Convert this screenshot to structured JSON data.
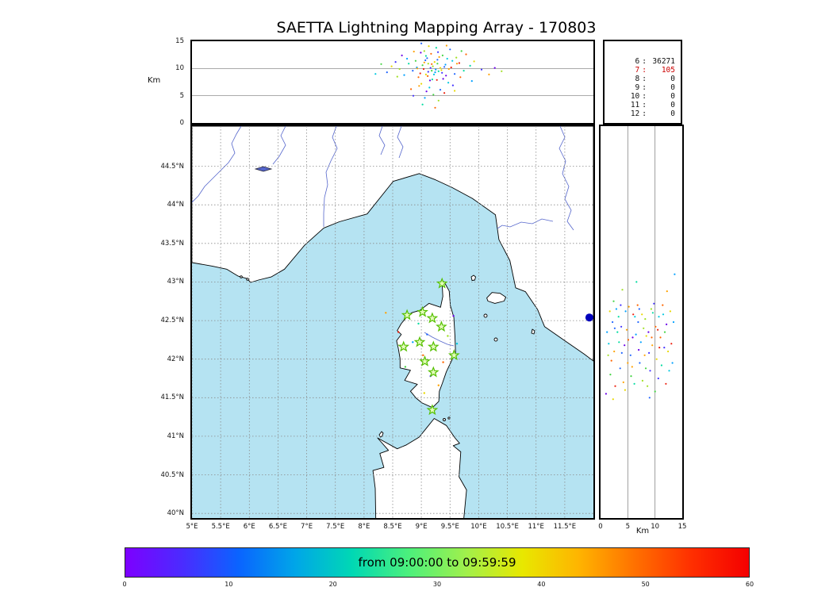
{
  "title": "SAETTA Lightning Mapping Array - 170803",
  "labels": {
    "alt_km": "Km",
    "alt_km_right": "Km"
  },
  "colors": {
    "sea": "#b5e3f2",
    "land": "#ffffff",
    "coast": "#000000",
    "river": "#5566cc",
    "grid": "#8a8a8a",
    "station": "#55c000",
    "station_fill": "#e4fbbc",
    "marker_blue": "#0000bb",
    "highlight_red": "#cc0000"
  },
  "palette": [
    "#6a00e8",
    "#4433ff",
    "#2266ff",
    "#00a0ff",
    "#00c8e0",
    "#00dca0",
    "#44d444",
    "#a0e022",
    "#e8d800",
    "#ffa200",
    "#ff6600",
    "#ee2211"
  ],
  "stats": {
    "rows": [
      {
        "station": "6",
        "count": "36271",
        "red": false
      },
      {
        "station": "7",
        "count": "105",
        "red": true
      },
      {
        "station": "8",
        "count": "0",
        "red": false
      },
      {
        "station": "9",
        "count": "0",
        "red": false
      },
      {
        "station": "10",
        "count": "0",
        "red": false
      },
      {
        "station": "11",
        "count": "0",
        "red": false
      },
      {
        "station": "12",
        "count": "0",
        "red": false
      }
    ]
  },
  "colorbar": {
    "title": "from 09:00:00 to 09:59:59",
    "ticks": [
      [
        0,
        "0"
      ],
      [
        10,
        "10"
      ],
      [
        20,
        "20"
      ],
      [
        30,
        "30"
      ],
      [
        40,
        "40"
      ],
      [
        50,
        "50"
      ],
      [
        60,
        "60"
      ]
    ],
    "range": [
      0,
      60
    ],
    "stops": [
      "#7d00ff",
      "#4b2bff",
      "#0a64ff",
      "#00a6e8",
      "#00d8b4",
      "#4cf07c",
      "#a0f04c",
      "#e8e800",
      "#ffb400",
      "#ff7000",
      "#ff2e00",
      "#f40000"
    ]
  },
  "chart_data": [
    {
      "type": "scatter",
      "name": "altitude-vs-longitude",
      "ylabel": "Km",
      "xlim": [
        5,
        12
      ],
      "ylim": [
        0,
        15
      ],
      "yticks": [
        [
          15,
          "15"
        ],
        [
          10,
          "10"
        ],
        [
          5,
          "5"
        ],
        [
          0,
          "0"
        ]
      ],
      "gridlines": [
        5,
        10
      ],
      "points": [
        [
          8.92,
          10.2,
          3
        ],
        [
          9.05,
          11.1,
          9
        ],
        [
          9.12,
          9.4,
          1
        ],
        [
          9.18,
          10.8,
          10
        ],
        [
          9.22,
          8.9,
          4
        ],
        [
          9.28,
          11.6,
          2
        ],
        [
          9.33,
          10.1,
          8
        ],
        [
          9.08,
          12.3,
          5
        ],
        [
          8.98,
          9.1,
          11
        ],
        [
          9.15,
          7.8,
          0
        ],
        [
          9.02,
          10.6,
          6
        ],
        [
          9.25,
          9.8,
          3
        ],
        [
          9.31,
          12.1,
          9
        ],
        [
          9.1,
          11.9,
          2
        ],
        [
          8.95,
          8.4,
          10
        ],
        [
          9.2,
          10.4,
          7
        ],
        [
          9.36,
          9.2,
          1
        ],
        [
          9.0,
          7.2,
          8
        ],
        [
          9.14,
          6.5,
          4
        ],
        [
          9.27,
          7.9,
          11
        ],
        [
          8.85,
          9.6,
          2
        ],
        [
          8.78,
          10.9,
          5
        ],
        [
          9.42,
          10.7,
          3
        ],
        [
          9.48,
          9.9,
          9
        ],
        [
          9.38,
          8.1,
          0
        ],
        [
          9.05,
          13.2,
          7
        ],
        [
          9.17,
          12.7,
          10
        ],
        [
          9.29,
          13.0,
          1
        ],
        [
          8.9,
          11.4,
          6
        ],
        [
          9.23,
          11.2,
          8
        ],
        [
          9.45,
          11.8,
          4
        ],
        [
          9.52,
          10.2,
          11
        ],
        [
          9.58,
          9.0,
          2
        ],
        [
          9.62,
          10.9,
          9
        ],
        [
          8.7,
          8.8,
          3
        ],
        [
          8.62,
          9.9,
          7
        ],
        [
          8.55,
          11.2,
          1
        ],
        [
          9.68,
          8.4,
          10
        ],
        [
          9.74,
          9.6,
          5
        ],
        [
          8.48,
          10.4,
          8
        ],
        [
          9.09,
          5.8,
          0
        ],
        [
          9.21,
          5.2,
          6
        ],
        [
          9.33,
          6.1,
          2
        ],
        [
          8.96,
          6.8,
          9
        ],
        [
          9.4,
          5.5,
          11
        ],
        [
          9.06,
          4.6,
          3
        ],
        [
          9.3,
          4.1,
          7
        ],
        [
          9.55,
          6.9,
          1
        ],
        [
          8.82,
          6.2,
          10
        ],
        [
          9.47,
          7.4,
          4
        ],
        [
          9.13,
          14.1,
          8
        ],
        [
          9.26,
          13.8,
          5
        ],
        [
          8.99,
          12.9,
          0
        ],
        [
          9.37,
          12.4,
          6
        ],
        [
          9.5,
          13.5,
          2
        ],
        [
          8.87,
          13.1,
          9
        ],
        [
          9.61,
          12.0,
          7
        ],
        [
          9.04,
          9.9,
          11
        ],
        [
          9.16,
          10.1,
          1
        ],
        [
          9.24,
          9.3,
          3
        ],
        [
          9.11,
          8.6,
          10
        ],
        [
          9.19,
          8.0,
          5
        ],
        [
          9.35,
          9.7,
          8
        ],
        [
          9.43,
          8.7,
          0
        ],
        [
          9.07,
          11.5,
          2
        ],
        [
          9.28,
          10.9,
          6
        ],
        [
          8.93,
          10.0,
          9
        ],
        [
          9.54,
          11.4,
          4
        ],
        [
          9.66,
          11.0,
          11
        ],
        [
          8.75,
          11.8,
          3
        ],
        [
          8.58,
          8.5,
          7
        ],
        [
          8.4,
          9.3,
          2
        ],
        [
          10.05,
          9.8,
          1
        ],
        [
          10.18,
          8.9,
          9
        ],
        [
          9.85,
          10.5,
          5
        ],
        [
          9.92,
          11.3,
          8
        ],
        [
          10.28,
          10.1,
          0
        ],
        [
          8.3,
          10.8,
          6
        ],
        [
          9.78,
          12.6,
          10
        ],
        [
          9.88,
          7.7,
          3
        ],
        [
          8.2,
          9.0,
          4
        ],
        [
          10.4,
          9.5,
          7
        ],
        [
          9.0,
          14.6,
          2
        ],
        [
          9.44,
          14.2,
          9
        ],
        [
          8.66,
          12.4,
          0
        ],
        [
          9.7,
          13.2,
          6
        ],
        [
          9.58,
          5.9,
          8
        ],
        [
          8.86,
          5.0,
          1
        ],
        [
          9.02,
          3.4,
          5
        ],
        [
          9.24,
          2.8,
          10
        ],
        [
          9.12,
          10.9,
          7
        ],
        [
          9.3,
          9.5,
          5
        ],
        [
          9.08,
          8.9,
          8
        ],
        [
          9.4,
          10.3,
          2
        ],
        [
          9.18,
          9.6,
          6
        ]
      ]
    },
    {
      "type": "scatter",
      "name": "map-plan-view",
      "xlim": [
        5,
        12
      ],
      "ylim": [
        39.94,
        45.02
      ],
      "lon_ticks": [
        [
          5,
          "5°E"
        ],
        [
          5.5,
          "5.5°E"
        ],
        [
          6,
          "6°E"
        ],
        [
          6.5,
          "6.5°E"
        ],
        [
          7,
          "7°E"
        ],
        [
          7.5,
          "7.5°E"
        ],
        [
          8,
          "8°E"
        ],
        [
          8.5,
          "8.5°E"
        ],
        [
          9,
          "9°E"
        ],
        [
          9.5,
          "9.5°E"
        ],
        [
          10,
          "10°E"
        ],
        [
          10.5,
          "10.5°E"
        ],
        [
          11,
          "11°E"
        ],
        [
          11.5,
          "11.5°E"
        ]
      ],
      "lat_ticks": [
        [
          44.5,
          "44.5°N"
        ],
        [
          44,
          "44°N"
        ],
        [
          43.5,
          "43.5°N"
        ],
        [
          43,
          "43°N"
        ],
        [
          42.5,
          "42.5°N"
        ],
        [
          42,
          "42°N"
        ],
        [
          41.5,
          "41.5°N"
        ],
        [
          41,
          "41°N"
        ],
        [
          40.5,
          "40.5°N"
        ],
        [
          40,
          "40°N"
        ]
      ],
      "points": [
        [
          8.38,
          42.6,
          9
        ],
        [
          8.85,
          42.22,
          3
        ],
        [
          9.03,
          42.05,
          10
        ],
        [
          9.16,
          41.78,
          1
        ],
        [
          9.3,
          41.66,
          9
        ],
        [
          8.95,
          42.46,
          5
        ],
        [
          9.46,
          42.3,
          7
        ],
        [
          9.1,
          42.32,
          2
        ],
        [
          9.38,
          41.96,
          10
        ],
        [
          8.72,
          41.9,
          6
        ],
        [
          9.56,
          42.56,
          0
        ],
        [
          9.05,
          41.56,
          8
        ],
        [
          9.62,
          42.2,
          4
        ],
        [
          8.6,
          42.35,
          11
        ]
      ],
      "stations": [
        [
          9.36,
          42.98
        ],
        [
          8.75,
          42.57
        ],
        [
          9.02,
          42.61
        ],
        [
          9.19,
          42.53
        ],
        [
          9.35,
          42.42
        ],
        [
          8.69,
          42.16
        ],
        [
          8.97,
          42.22
        ],
        [
          9.21,
          42.16
        ],
        [
          9.57,
          42.05
        ],
        [
          9.06,
          41.97
        ],
        [
          9.21,
          41.83
        ],
        [
          9.19,
          41.34
        ]
      ],
      "blue_marker": [
        11.93,
        42.54
      ]
    },
    {
      "type": "scatter",
      "name": "altitude-vs-latitude",
      "xlabel": "Km",
      "xlim": [
        0,
        15
      ],
      "ylim": [
        39.94,
        45.02
      ],
      "xticks": [
        [
          0,
          "0"
        ],
        [
          5,
          "5"
        ],
        [
          10,
          "10"
        ],
        [
          15,
          "15"
        ]
      ],
      "gridlines": [
        5,
        10
      ],
      "points": [
        [
          1.2,
          42.35,
          3
        ],
        [
          2.5,
          42.1,
          9
        ],
        [
          3.8,
          42.42,
          1
        ],
        [
          5.1,
          42.25,
          10
        ],
        [
          6.3,
          42.55,
          4
        ],
        [
          7.2,
          41.95,
          2
        ],
        [
          8.4,
          42.3,
          8
        ],
        [
          9.6,
          42.6,
          5
        ],
        [
          10.8,
          42.15,
          11
        ],
        [
          12.1,
          42.45,
          0
        ],
        [
          1.8,
          41.8,
          6
        ],
        [
          2.9,
          42.65,
          3
        ],
        [
          4.2,
          41.7,
          9
        ],
        [
          5.5,
          42.05,
          2
        ],
        [
          6.8,
          42.7,
          10
        ],
        [
          7.9,
          42.4,
          7
        ],
        [
          9.1,
          41.85,
          1
        ],
        [
          10.3,
          42.0,
          8
        ],
        [
          11.5,
          42.58,
          4
        ],
        [
          13.0,
          42.2,
          11
        ],
        [
          2.2,
          42.48,
          2
        ],
        [
          3.4,
          42.22,
          5
        ],
        [
          4.6,
          42.62,
          3
        ],
        [
          5.8,
          41.9,
          9
        ],
        [
          7.0,
          42.12,
          0
        ],
        [
          8.2,
          42.52,
          7
        ],
        [
          9.4,
          42.28,
          10
        ],
        [
          10.6,
          41.75,
          1
        ],
        [
          11.8,
          42.35,
          6
        ],
        [
          12.8,
          42.62,
          8
        ],
        [
          1.5,
          42.2,
          4
        ],
        [
          2.7,
          41.65,
          11
        ],
        [
          3.9,
          42.08,
          2
        ],
        [
          5.2,
          42.68,
          9
        ],
        [
          6.5,
          42.32,
          3
        ],
        [
          7.7,
          41.72,
          7
        ],
        [
          8.9,
          42.08,
          1
        ],
        [
          10.1,
          42.42,
          10
        ],
        [
          11.2,
          41.92,
          5
        ],
        [
          12.4,
          42.1,
          8
        ],
        [
          1.0,
          41.55,
          0
        ],
        [
          2.4,
          42.75,
          6
        ],
        [
          3.6,
          41.88,
          2
        ],
        [
          4.8,
          42.38,
          9
        ],
        [
          6.0,
          42.58,
          11
        ],
        [
          7.4,
          42.22,
          3
        ],
        [
          8.6,
          41.65,
          7
        ],
        [
          9.8,
          42.72,
          1
        ],
        [
          11.0,
          42.28,
          10
        ],
        [
          12.6,
          41.85,
          4
        ],
        [
          1.7,
          42.62,
          8
        ],
        [
          3.1,
          42.35,
          5
        ],
        [
          4.4,
          42.18,
          0
        ],
        [
          5.6,
          41.78,
          6
        ],
        [
          6.9,
          42.48,
          2
        ],
        [
          8.1,
          42.05,
          9
        ],
        [
          9.3,
          42.65,
          7
        ],
        [
          10.5,
          42.38,
          11
        ],
        [
          11.7,
          42.15,
          1
        ],
        [
          13.4,
          42.48,
          3
        ],
        [
          2.0,
          41.98,
          10
        ],
        [
          3.3,
          42.55,
          5
        ],
        [
          4.5,
          41.6,
          8
        ],
        [
          5.9,
          42.28,
          0
        ],
        [
          7.1,
          42.65,
          2
        ],
        [
          8.3,
          41.88,
          6
        ],
        [
          9.5,
          42.18,
          9
        ],
        [
          10.7,
          42.55,
          4
        ],
        [
          12.0,
          41.68,
          11
        ],
        [
          13.2,
          41.95,
          3
        ],
        [
          1.4,
          42.05,
          7
        ],
        [
          2.6,
          42.4,
          2
        ],
        [
          3.7,
          42.7,
          1
        ],
        [
          5.0,
          41.95,
          9
        ],
        [
          6.2,
          41.68,
          5
        ],
        [
          7.6,
          42.58,
          8
        ],
        [
          8.8,
          42.35,
          0
        ],
        [
          10.0,
          41.58,
          6
        ],
        [
          11.4,
          42.7,
          10
        ],
        [
          13.6,
          43.1,
          3
        ],
        [
          4.0,
          42.9,
          7
        ],
        [
          6.6,
          43.0,
          5
        ],
        [
          2.3,
          41.48,
          8
        ],
        [
          9.0,
          41.5,
          2
        ],
        [
          12.2,
          42.88,
          9
        ]
      ]
    }
  ]
}
